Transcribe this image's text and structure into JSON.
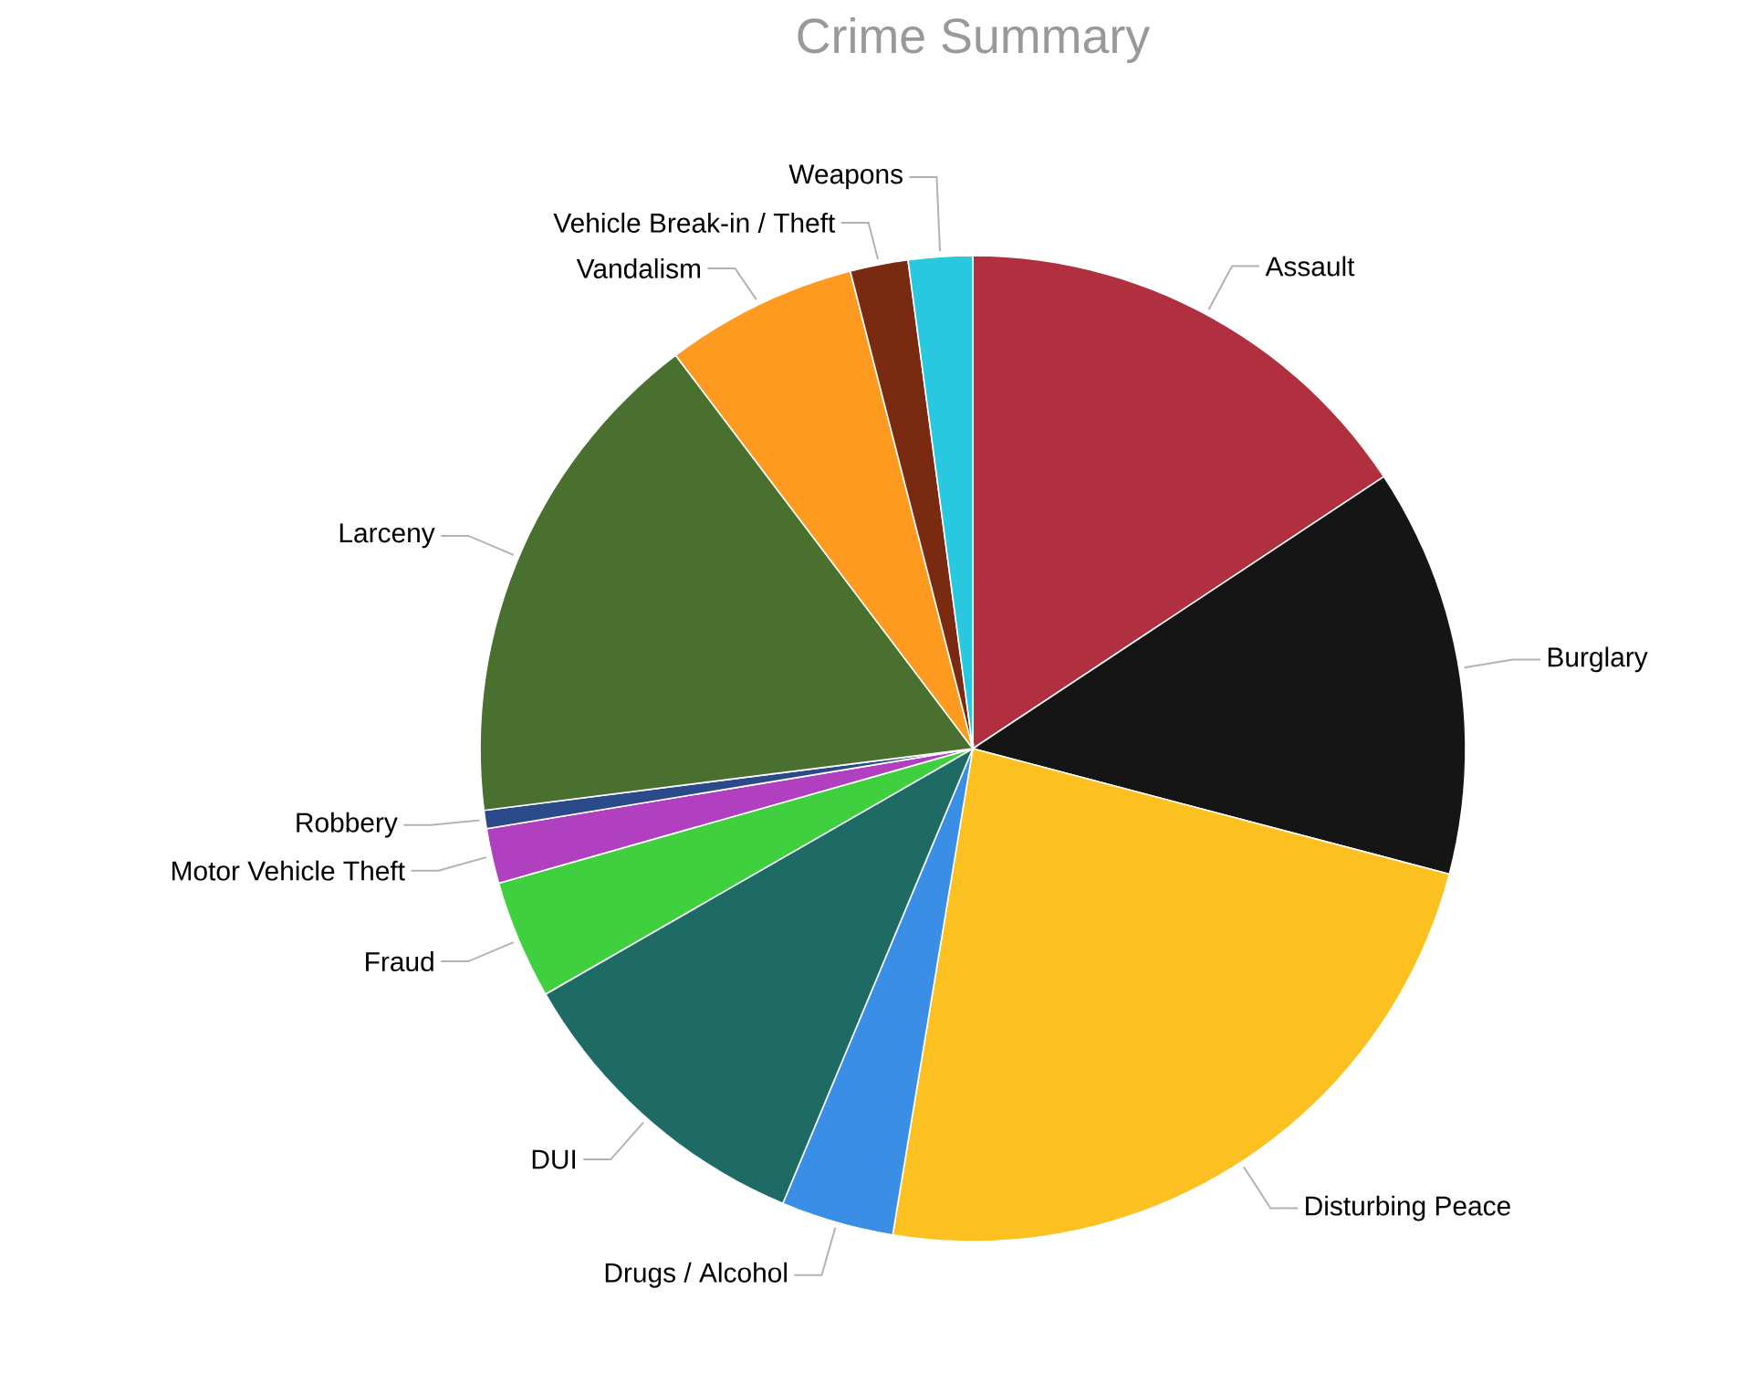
{
  "chart_data": {
    "type": "pie",
    "title": "Crime Summary",
    "categories": [
      "Assault",
      "Burglary",
      "Disturbing Peace",
      "Drugs / Alcohol",
      "DUI",
      "Fraud",
      "Motor Vehicle Theft",
      "Robbery",
      "Larceny",
      "Vandalism",
      "Vehicle Break-in / Theft",
      "Weapons"
    ],
    "values": [
      15.7,
      13.4,
      23.5,
      3.7,
      10.4,
      3.9,
      1.8,
      0.6,
      16.7,
      6.3,
      1.9,
      2.1
    ],
    "colors": [
      "#b0303f",
      "#151515",
      "#fcc020",
      "#3a8ee6",
      "#1e6b66",
      "#3fcf3f",
      "#b040c0",
      "#2a4a8a",
      "#4a7030",
      "#ff9a20",
      "#7a2a10",
      "#28c8e0"
    ]
  }
}
